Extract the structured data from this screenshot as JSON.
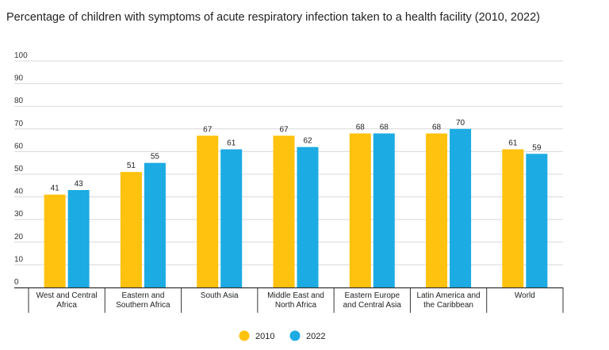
{
  "chart_data": {
    "type": "bar",
    "title": "Percentage of children with symptoms of acute respiratory infection taken to a health facility (2010, 2022)",
    "xlabel": "",
    "ylabel": "",
    "ylim": [
      0,
      100
    ],
    "yticks": [
      0,
      10,
      20,
      30,
      40,
      50,
      60,
      70,
      80,
      90,
      100
    ],
    "grid": true,
    "legend_position": "bottom",
    "categories": [
      [
        "West and Central",
        "Africa"
      ],
      [
        "Eastern and",
        "Southern Africa"
      ],
      [
        "South Asia"
      ],
      [
        "Middle East and",
        "North Africa"
      ],
      [
        "Eastern Europe",
        "and Central Asia"
      ],
      [
        "Latin America and",
        "the Caribbean"
      ],
      [
        "World"
      ]
    ],
    "series": [
      {
        "name": "2010",
        "color": "#FFC20E",
        "values": [
          41,
          51,
          67,
          67,
          68,
          68,
          61
        ]
      },
      {
        "name": "2022",
        "color": "#1CABE2",
        "values": [
          43,
          55,
          61,
          62,
          68,
          70,
          59
        ]
      }
    ]
  }
}
